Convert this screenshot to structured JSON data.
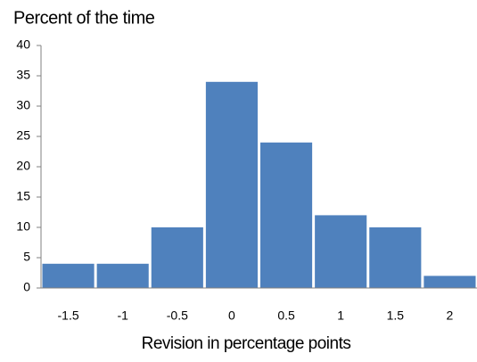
{
  "chart_data": {
    "type": "bar",
    "title": "Percent of the time",
    "x_label": "Revision in percentage points",
    "categories": [
      "-1.5",
      "-1",
      "-0.5",
      "0",
      "0.5",
      "1",
      "1.5",
      "2"
    ],
    "values": [
      4,
      4,
      10,
      34,
      24,
      12,
      10,
      2
    ],
    "color": "#4f81bd",
    "ylim": [
      0,
      40
    ],
    "yticks": [
      0,
      5,
      10,
      15,
      20,
      25,
      30,
      35,
      40
    ],
    "grid": false
  }
}
